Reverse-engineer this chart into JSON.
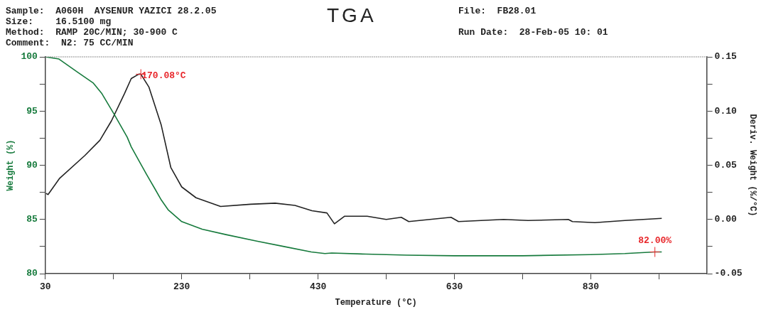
{
  "chart_data": {
    "type": "line",
    "title": "TGA",
    "xlabel": "Temperature (°C)",
    "ylabel": "Weight (%)",
    "y2label": "Deriv. Weight (%/°C)",
    "annotations": [
      "Sample:  A060H  AYSENUR YAZICI 28.2.05",
      "Size:    16.5100 mg",
      "Method:  RAMP 20C/MIN; 30-900 C",
      "Comment:  N2: 75 CC/MIN",
      "File:  FB28.01",
      "Run Date:  28-Feb-05 10: 01",
      {
        "text": "170.08°C",
        "x": 170.08,
        "y": 98.4
      },
      {
        "text": "82.00%",
        "x": 924,
        "y": 82.0
      }
    ],
    "xlim": [
      30,
      1000
    ],
    "xticks": [
      30,
      {
        "value": 130,
        "label": null
      },
      230,
      {
        "value": 330,
        "label": null
      },
      430,
      {
        "value": 530,
        "label": null
      },
      630,
      {
        "value": 730,
        "label": null
      },
      830,
      {
        "value": 930,
        "label": null
      }
    ],
    "ylim": [
      80,
      100
    ],
    "yticks": [
      80,
      {
        "value": 82.5,
        "label": null
      },
      85,
      {
        "value": 87.5,
        "label": null
      },
      90,
      {
        "value": 92.5,
        "label": null
      },
      95,
      {
        "value": 97.5,
        "label": null
      },
      100
    ],
    "y2lim": [
      -0.05,
      0.15
    ],
    "y2ticks": [
      {
        "value": -0.05,
        "label": "-0.05"
      },
      {
        "value": -0.025,
        "label": null
      },
      {
        "value": 0,
        "label": "0.00"
      },
      {
        "value": 0.025,
        "label": null
      },
      {
        "value": 0.05,
        "label": "0.05"
      },
      {
        "value": 0.075,
        "label": null
      },
      {
        "value": 0.1,
        "label": "0.10"
      },
      {
        "value": 0.125,
        "label": null
      },
      {
        "value": 0.15,
        "label": "0.15"
      }
    ],
    "grid": false,
    "legend": false,
    "marker": "none",
    "line_style": "solid",
    "series": [
      {
        "color": "#167a3c",
        "x": [
          30,
          50,
          77,
          100,
          113,
          131,
          150,
          156,
          170,
          178,
          190,
          200,
          210,
          230,
          260,
          295,
          340,
          380,
          420,
          440,
          450,
          500,
          560,
          630,
          730,
          830,
          880,
          924,
          934
        ],
        "values": [
          100,
          99.8,
          98.6,
          97.6,
          96.6,
          94.7,
          92.6,
          91.7,
          90.1,
          89.2,
          87.9,
          86.8,
          85.9,
          84.8,
          84.1,
          83.6,
          83.0,
          82.5,
          82.0,
          81.85,
          81.9,
          81.8,
          81.7,
          81.65,
          81.65,
          81.75,
          81.85,
          82.0,
          82.0
        ]
      },
      {
        "color": "#222222",
        "axis": "y2",
        "x": [
          31,
          34,
          51,
          88,
          110,
          127,
          146,
          156,
          167,
          170.08,
          182,
          200,
          214,
          230,
          251,
          287,
          331,
          367,
          396,
          421,
          443,
          454,
          469,
          502,
          530,
          552,
          563,
          625,
          636,
          702,
          738,
          797,
          803,
          836,
          880,
          934
        ],
        "values": [
          0.024,
          0.023,
          0.038,
          0.059,
          0.073,
          0.091,
          0.116,
          0.13,
          0.134,
          0.134,
          0.122,
          0.087,
          0.048,
          0.03,
          0.02,
          0.012,
          0.014,
          0.015,
          0.013,
          0.008,
          0.006,
          -0.004,
          0.003,
          0.003,
          0.0,
          0.002,
          -0.002,
          0.002,
          -0.002,
          0.0,
          -0.001,
          0.0,
          -0.002,
          -0.003,
          -0.001,
          0.001
        ]
      }
    ]
  }
}
